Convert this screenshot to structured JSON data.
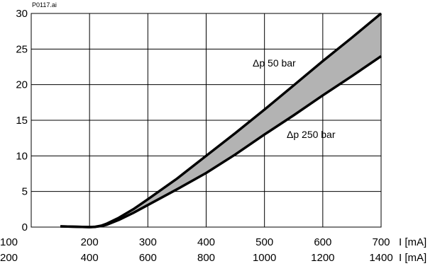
{
  "chart_data": {
    "type": "area",
    "file_label": "P0117.ai",
    "x_axis_1": {
      "ticks": [
        100,
        200,
        300,
        400,
        500,
        600,
        700
      ],
      "unit_label": "I [mA]"
    },
    "x_axis_2": {
      "ticks": [
        200,
        400,
        600,
        800,
        1000,
        1200,
        1400
      ],
      "unit_label": "I [mA]"
    },
    "y_axis": {
      "ticks": [
        0,
        5,
        10,
        15,
        20,
        25,
        30
      ],
      "ylim": [
        0,
        30
      ]
    },
    "xlim": [
      100,
      700
    ],
    "grid": true,
    "series": [
      {
        "name": "Δp 50 bar",
        "x": [
          150,
          175,
          200,
          210,
          220,
          230,
          250,
          275,
          300,
          350,
          400,
          450,
          500,
          550,
          600,
          650,
          700
        ],
        "y": [
          0.1,
          0.05,
          0.0,
          0.05,
          0.2,
          0.5,
          1.3,
          2.5,
          3.9,
          6.8,
          10.0,
          13.2,
          16.5,
          19.9,
          23.3,
          26.6,
          30.0
        ]
      },
      {
        "name": "Δp 250 bar",
        "x": [
          150,
          175,
          200,
          210,
          220,
          230,
          250,
          275,
          300,
          350,
          400,
          450,
          500,
          550,
          600,
          650,
          700
        ],
        "y": [
          0.1,
          0.05,
          0.0,
          0.03,
          0.15,
          0.35,
          1.0,
          2.0,
          3.1,
          5.3,
          7.6,
          10.2,
          13.0,
          15.7,
          18.5,
          21.2,
          24.0
        ]
      }
    ],
    "fill_between": {
      "color": "#b3b3b3"
    },
    "line_color": "#000000"
  }
}
